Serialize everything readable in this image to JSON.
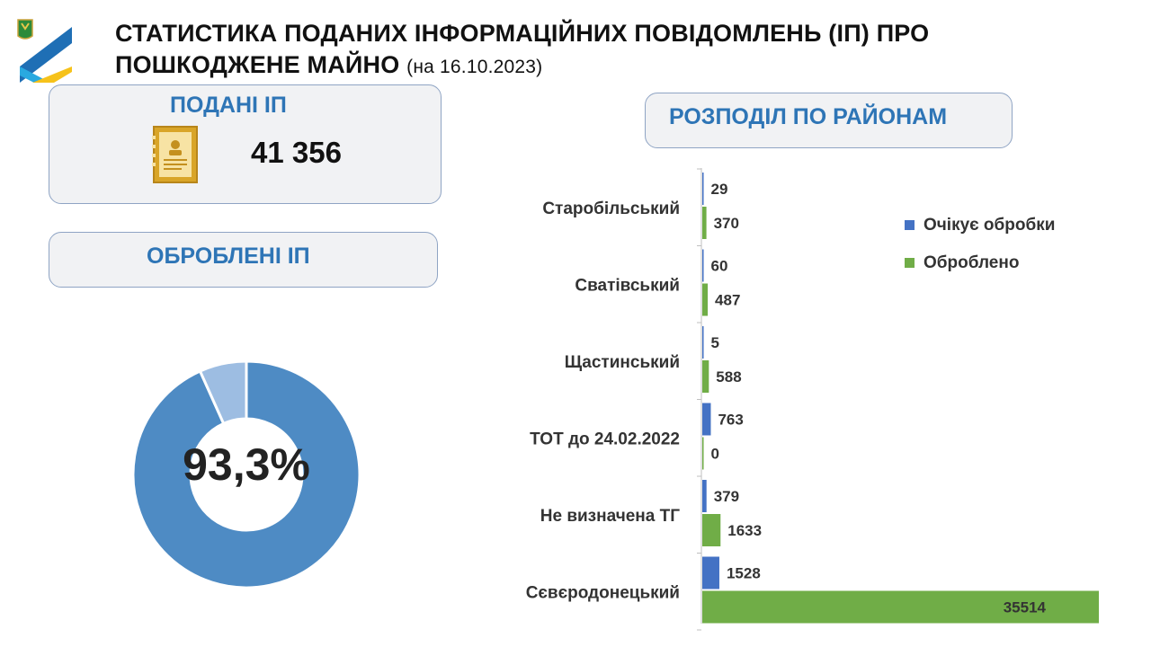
{
  "header": {
    "title_line1": "СТАТИСТИКА ПОДАНИХ ІНФОРМАЦІЙНИХ ПОВІДОМЛЕНЬ (ІП) ПРО",
    "title_line2": "ПОШКОДЖЕНЕ МАЙНО",
    "date": "(на 16.10.2023)"
  },
  "submitted": {
    "heading": "ПОДАНІ ІП",
    "total": "41 356"
  },
  "processed": {
    "heading": "ОБРОБЛЕНІ ІП",
    "percent_label": "93,3%",
    "percent": 93.3
  },
  "districts": {
    "heading": "РОЗПОДІЛ ПО РАЙОНАМ"
  },
  "colors": {
    "blue": "#4472c4",
    "green": "#70ad47",
    "donut_main": "#4e8bc4",
    "donut_rest": "#9dbde2",
    "heading": "#2e75b6"
  },
  "chart_data": [
    {
      "type": "pie",
      "values": [
        93.3,
        6.7
      ]
    },
    {
      "type": "bar",
      "orientation": "horizontal",
      "categories": [
        "Старобільський",
        "Сватівський",
        "Щастинський",
        "ТОТ до 24.02.2022",
        "Не визначена ТГ",
        "Сєвєродонецький"
      ],
      "series": [
        {
          "name": "Очікує обробки",
          "values": [
            29,
            60,
            5,
            763,
            379,
            1528
          ],
          "color": "#4472c4"
        },
        {
          "name": "Оброблено",
          "values": [
            370,
            487,
            588,
            0,
            1633,
            35514
          ],
          "color": "#70ad47"
        }
      ],
      "xlim": [
        0,
        35514
      ],
      "legend": "right"
    }
  ]
}
